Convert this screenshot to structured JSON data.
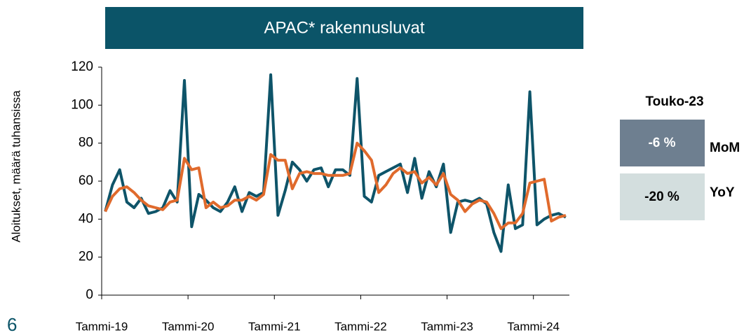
{
  "chart_data": {
    "type": "line",
    "title": "APAC* rakennusluvat",
    "ylabel": "Aloitukset, määrä tuhansissa",
    "categories": [
      "Tammi-19",
      null,
      null,
      null,
      null,
      null,
      null,
      null,
      null,
      null,
      null,
      null,
      "Tammi-20",
      null,
      null,
      null,
      null,
      null,
      null,
      null,
      null,
      null,
      null,
      null,
      "Tammi-21",
      null,
      null,
      null,
      null,
      null,
      null,
      null,
      null,
      null,
      null,
      null,
      "Tammi-22",
      null,
      null,
      null,
      null,
      null,
      null,
      null,
      null,
      null,
      null,
      null,
      "Tammi-23",
      null,
      null,
      null,
      null,
      null,
      null,
      null,
      null,
      null,
      null,
      null,
      "Tammi-24",
      null,
      null,
      null,
      null
    ],
    "series": [
      {
        "color": "#0e5469",
        "values": [
          44,
          58,
          66,
          49,
          46,
          51,
          43,
          44,
          46,
          55,
          49,
          113,
          36,
          53,
          50,
          46,
          44,
          49,
          57,
          44,
          54,
          52,
          54,
          116,
          42,
          55,
          70,
          66,
          60,
          66,
          67,
          57,
          66,
          66,
          63,
          114,
          52,
          49,
          63,
          65,
          67,
          69,
          54,
          72,
          51,
          65,
          57,
          69,
          33,
          49,
          50,
          49,
          51,
          48,
          33,
          23,
          58,
          35,
          37,
          107,
          37,
          40,
          42,
          43,
          41
        ]
      },
      {
        "color": "#e06a2c",
        "values": [
          44,
          52,
          56,
          57,
          54,
          50,
          47,
          46,
          45,
          49,
          50,
          72,
          66,
          67,
          46,
          49,
          46,
          47,
          50,
          50,
          52,
          50,
          53,
          74,
          71,
          71,
          56,
          64,
          65,
          64,
          64,
          63,
          63,
          63,
          64,
          80,
          76,
          71,
          54,
          58,
          64,
          67,
          64,
          65,
          59,
          62,
          58,
          64,
          53,
          50,
          44,
          48,
          50,
          49,
          43,
          35,
          38,
          38,
          43,
          59,
          60,
          61,
          39,
          41,
          42
        ]
      }
    ],
    "ylim": [
      0,
      120
    ],
    "yticks": [
      0,
      20,
      40,
      60,
      80,
      100,
      120
    ],
    "grid": false
  },
  "kpi": {
    "title": "Touko-23",
    "items": [
      {
        "value": "-6 %",
        "label": "MoM"
      },
      {
        "value": "-20 %",
        "label": "YoY"
      }
    ]
  },
  "page_number": "6"
}
